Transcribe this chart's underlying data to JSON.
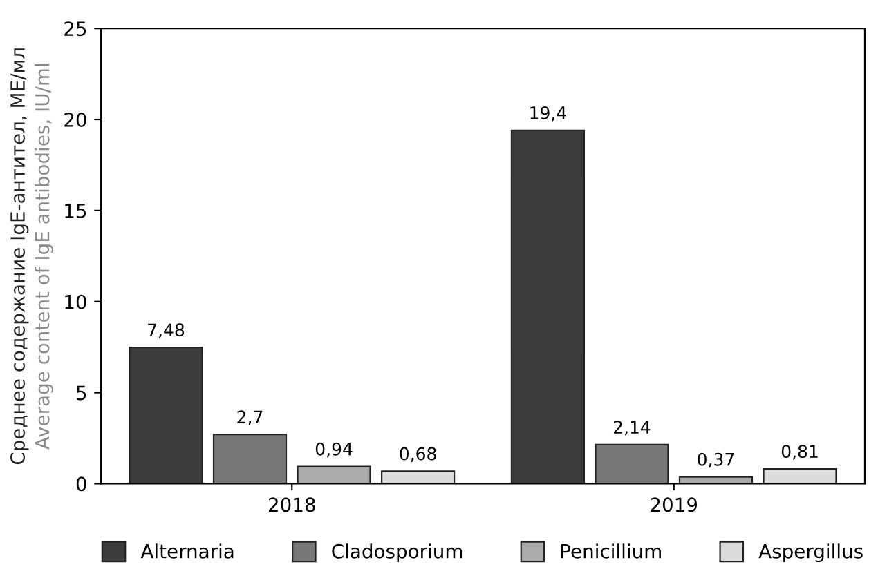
{
  "chart_data": {
    "type": "bar",
    "ylabel": "Среднее содержание IgE-антител, МЕ/мл\nAverage content of IgE antibodies, IU/ml",
    "categories": [
      "2018",
      "2019"
    ],
    "series": [
      {
        "name": "Alternaria",
        "color": "#3c3c3c",
        "values": [
          7.48,
          19.4
        ],
        "value_labels": [
          "7,48",
          "19,4"
        ]
      },
      {
        "name": "Cladosporium",
        "color": "#777777",
        "values": [
          2.7,
          2.14
        ],
        "value_labels": [
          "2,7",
          "2,14"
        ]
      },
      {
        "name": "Penicillium",
        "color": "#ababab",
        "values": [
          0.94,
          0.37
        ],
        "value_labels": [
          "0,94",
          "0,37"
        ]
      },
      {
        "name": "Aspergillus",
        "color": "#dcdcdc",
        "values": [
          0.68,
          0.81
        ],
        "value_labels": [
          "0,68",
          "0,81"
        ]
      }
    ],
    "ylim": [
      0,
      25
    ],
    "yticks": [
      0,
      5,
      10,
      15,
      20,
      25
    ],
    "grid": false,
    "legend": "bottom"
  }
}
